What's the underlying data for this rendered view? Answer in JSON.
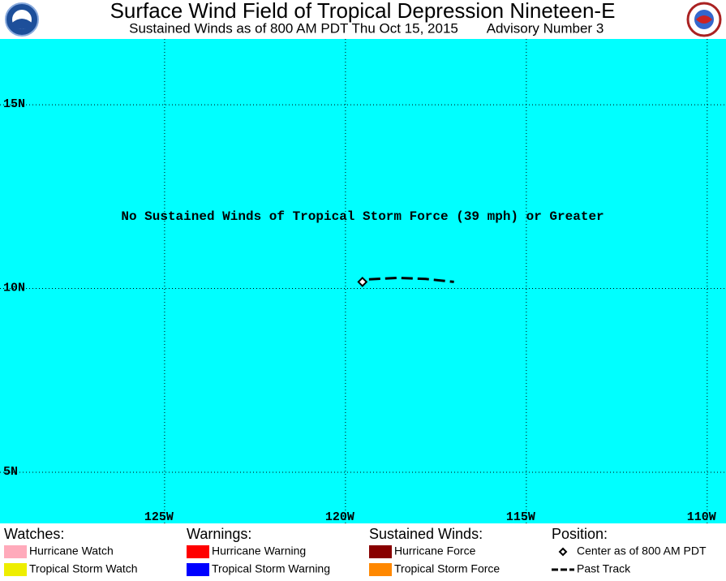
{
  "header": {
    "title": "Surface Wind Field of Tropical Depression Nineteen-E",
    "subtitle": "Sustained Winds as of 800 AM PDT Thu Oct 15, 2015",
    "advisory": "Advisory Number 3"
  },
  "map": {
    "background": "#00ffff",
    "lonlim": [
      -129.55,
      -109.48
    ],
    "latlim": [
      3.61,
      16.79
    ],
    "lonticks": [
      {
        "value": -125,
        "label": "125W"
      },
      {
        "value": -120,
        "label": "120W"
      },
      {
        "value": -115,
        "label": "115W"
      },
      {
        "value": -110,
        "label": "110W"
      }
    ],
    "latticks": [
      {
        "value": 5,
        "label": "5N"
      },
      {
        "value": 10,
        "label": "10N"
      },
      {
        "value": 15,
        "label": "15N"
      }
    ],
    "annotation": "No Sustained Winds of Tropical Storm Force (39 mph) or Greater",
    "center": {
      "lon": -119.53,
      "lat": 10.18
    },
    "past_track": {
      "lon": [
        -119.35,
        -118.57,
        -117.78,
        -117.0
      ],
      "lat": [
        10.25,
        10.29,
        10.26,
        10.18
      ]
    }
  },
  "legend": {
    "groups": [
      {
        "title": "Watches:",
        "items": [
          {
            "label": "Hurricane Watch",
            "color": "#ffaabb"
          },
          {
            "label": "Tropical Storm Watch",
            "color": "#eeee00"
          }
        ]
      },
      {
        "title": "Warnings:",
        "items": [
          {
            "label": "Hurricane Warning",
            "color": "#ff0000"
          },
          {
            "label": "Tropical Storm Warning",
            "color": "#0000ff"
          }
        ]
      },
      {
        "title": "Sustained Winds:",
        "items": [
          {
            "label": "Hurricane Force",
            "color": "#880000"
          },
          {
            "label": "Tropical Storm Force",
            "color": "#ff8800"
          }
        ]
      },
      {
        "title": "Position:",
        "items": [
          {
            "label": "Center as of 800 AM PDT"
          },
          {
            "label": "Past Track"
          }
        ]
      }
    ]
  }
}
